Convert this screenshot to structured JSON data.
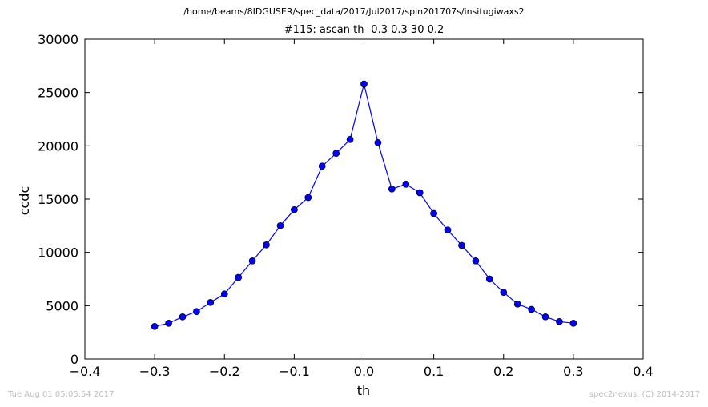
{
  "header": {
    "path": "/home/beams/8IDGUSER/spec_data/2017/Jul2017/spin201707s/insitugiwaxs2",
    "scan_title": "#115: ascan  th -0.3 0.3  30 0.2"
  },
  "footer": {
    "timestamp": "Tue Aug 01 05:05:54 2017",
    "credit": "spec2nexus, (C) 2014-2017"
  },
  "chart_data": {
    "type": "line",
    "title": "#115: ascan  th -0.3 0.3  30 0.2",
    "xlabel": "th",
    "ylabel": "ccdc",
    "xlim": [
      -0.4,
      0.4
    ],
    "ylim": [
      0,
      30000
    ],
    "xticks": [
      "−0.4",
      "−0.3",
      "−0.2",
      "−0.1",
      "0.0",
      "0.1",
      "0.2",
      "0.3",
      "0.4"
    ],
    "xtick_values": [
      -0.4,
      -0.3,
      -0.2,
      -0.1,
      0.0,
      0.1,
      0.2,
      0.3,
      0.4
    ],
    "yticks": [
      "0",
      "5000",
      "10000",
      "15000",
      "20000",
      "25000",
      "30000"
    ],
    "ytick_values": [
      0,
      5000,
      10000,
      15000,
      20000,
      25000,
      30000
    ],
    "grid": false,
    "line_color": "#0000ff",
    "marker": "circle",
    "x": [
      -0.3,
      -0.28,
      -0.26,
      -0.24,
      -0.22,
      -0.2,
      -0.18,
      -0.16,
      -0.14,
      -0.12,
      -0.1,
      -0.08,
      -0.06,
      -0.04,
      -0.02,
      0.0,
      0.02,
      0.04,
      0.06,
      0.08,
      0.1,
      0.12,
      0.14,
      0.16,
      0.18,
      0.2,
      0.22,
      0.24,
      0.26,
      0.28,
      0.3
    ],
    "y": [
      3050,
      3350,
      3950,
      4450,
      5300,
      6100,
      7650,
      9200,
      10700,
      12500,
      14000,
      15150,
      18100,
      19300,
      20600,
      25800,
      20300,
      15950,
      16400,
      15600,
      13650,
      12100,
      10650,
      9200,
      7500,
      6250,
      5150,
      4650,
      3950,
      3500,
      3350
    ]
  }
}
